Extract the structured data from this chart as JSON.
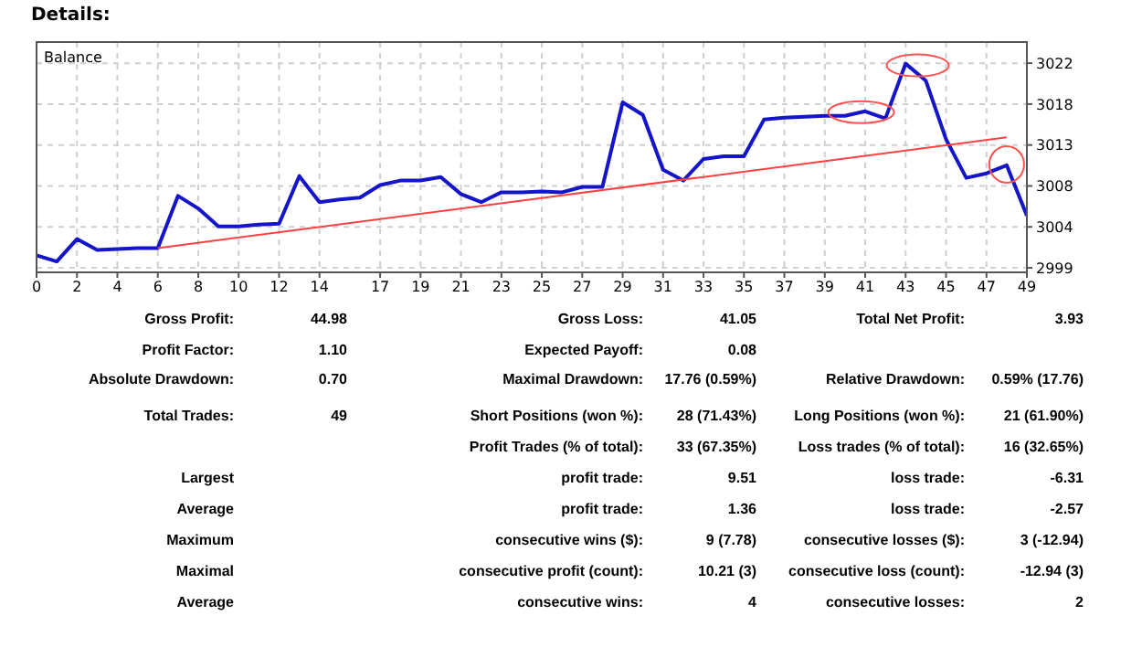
{
  "chart_data": {
    "type": "line",
    "title": "Details:",
    "grid": true,
    "categories": [
      "0",
      null,
      "2",
      null,
      "4",
      null,
      "6",
      null,
      "8",
      null,
      "10",
      null,
      "12",
      null,
      "14",
      null,
      null,
      "17",
      null,
      "19",
      null,
      "21",
      null,
      "23",
      null,
      "25",
      null,
      "27",
      null,
      "29",
      null,
      "31",
      null,
      "33",
      null,
      "35",
      null,
      "37",
      null,
      "39",
      null,
      "41",
      null,
      "43",
      null,
      "45",
      null,
      "47",
      null,
      "49"
    ],
    "ylim": [
      2998.8,
      3024.4
    ],
    "yticks": [
      {
        "value": 2999.3,
        "label": "2999"
      },
      {
        "value": 3003.85,
        "label": "3004"
      },
      {
        "value": 3008.4,
        "label": "3008"
      },
      {
        "value": 3012.95,
        "label": "3013"
      },
      {
        "value": 3017.5,
        "label": "3018"
      },
      {
        "value": 3022.05,
        "label": "3022"
      }
    ],
    "series": [
      {
        "name": "Balance",
        "color": "#1414c8",
        "values": [
          3000.7,
          3000.0,
          3002.5,
          3001.3,
          3001.4,
          3001.5,
          3001.5,
          3007.3,
          3005.9,
          3003.9,
          3003.9,
          3004.1,
          3004.2,
          3009.5,
          3006.6,
          3006.9,
          3007.1,
          3008.5,
          3009.0,
          3009.0,
          3009.4,
          3007.5,
          3006.6,
          3007.7,
          3007.7,
          3007.8,
          3007.7,
          3008.3,
          3008.3,
          3017.7,
          3016.3,
          3010.2,
          3009.0,
          3011.4,
          3011.7,
          3011.7,
          3015.8,
          3016.0,
          3016.1,
          3016.2,
          3016.2,
          3016.7,
          3015.9,
          3022.0,
          3020.1,
          3013.6,
          3009.3,
          3009.8,
          3010.7,
          3005.1
        ]
      },
      {
        "color": "#ff4040",
        "values": [
          null,
          null,
          null,
          null,
          null,
          null,
          3001.5,
          null,
          null,
          null,
          null,
          null,
          null,
          null,
          null,
          null,
          null,
          null,
          null,
          null,
          null,
          null,
          null,
          null,
          null,
          null,
          null,
          null,
          null,
          null,
          null,
          null,
          null,
          null,
          null,
          null,
          null,
          null,
          null,
          null,
          null,
          null,
          null,
          null,
          null,
          null,
          null,
          null,
          3013.8,
          null
        ]
      }
    ],
    "annotations": [
      "Gross Profit:\t44.98\tGross Loss:\t41.05\tTotal Net Profit:\t3.93",
      "Profit Factor:\t1.10\tExpected Payoff:\t0.08\t\t",
      "Absolute Drawdown:\t0.70\tMaximal Drawdown:\t17.76 (0.59%)\tRelative Drawdown:\t0.59% (17.76)",
      "Total Trades:\t49\tShort Positions (won %):\t28 (71.43%)\tLong Positions (won %):\t21 (61.90%)",
      "\t\tProfit Trades (% of total):\t33 (67.35%)\tLoss trades (% of total):\t16 (32.65%)",
      "Largest\t\tprofit trade:\t9.51\tloss trade:\t-6.31",
      "Average\t\tprofit trade:\t1.36\tloss trade:\t-2.57",
      "Maximum\t\tconsecutive wins ($):\t9 (7.78)\tconsecutive losses ($):\t3 (-12.94)",
      "Maximal\t\tconsecutive profit (count):\t10.21 (3)\tconsecutive loss (count):\t-12.94 (3)",
      "Average\t\tconsecutive wins:\t4\tconsecutive losses:\t2"
    ]
  }
}
